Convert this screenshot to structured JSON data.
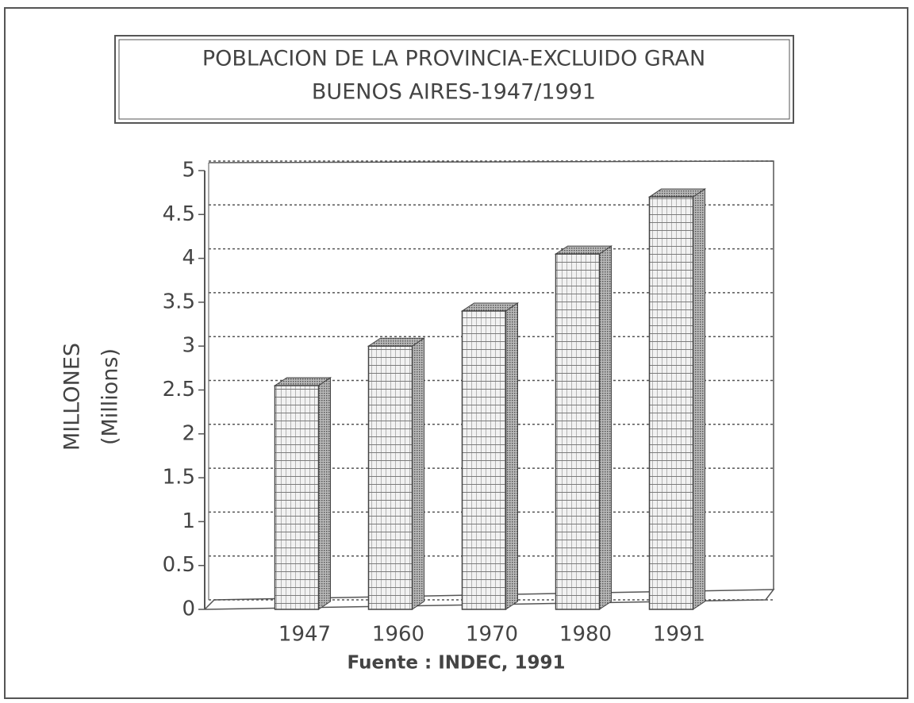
{
  "chart_data": {
    "type": "bar3d",
    "title": [
      "POBLACION DE LA PROVINCIA-EXCLUIDO GRAN",
      "BUENOS AIRES-1947/1991"
    ],
    "ylabel": [
      "MILLONES",
      "(Millions)"
    ],
    "source": "Fuente : INDEC, 1991",
    "categories": [
      "1947",
      "1960",
      "1970",
      "1980",
      "1991"
    ],
    "values": [
      2.55,
      3.0,
      3.4,
      4.05,
      4.7
    ],
    "color": "#d8d8d8",
    "ylim": [
      0,
      5
    ],
    "yticks": [
      0,
      0.5,
      1,
      1.5,
      2,
      2.5,
      3,
      3.5,
      4,
      4.5,
      5
    ],
    "grid": true
  }
}
